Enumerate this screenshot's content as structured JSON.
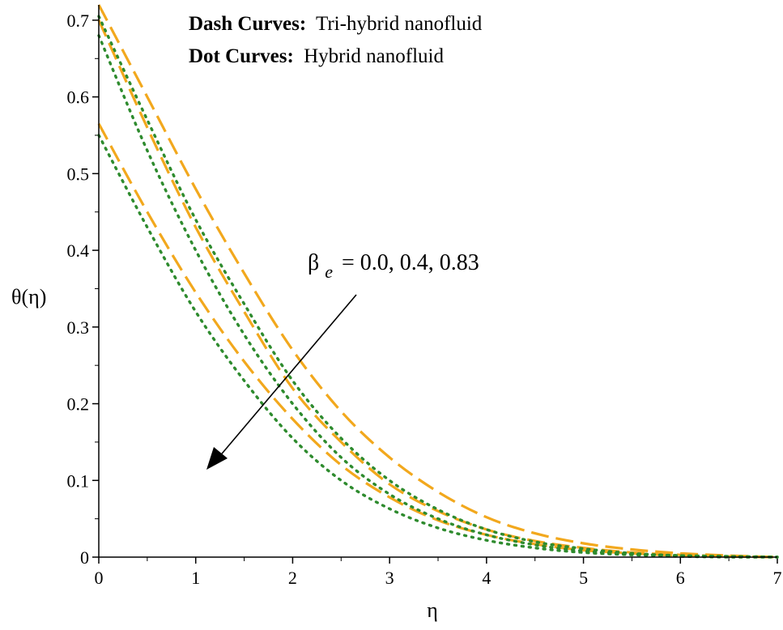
{
  "chart_data": {
    "type": "line",
    "xlabel": "η",
    "ylabel": "θ(η)",
    "xlim": [
      0,
      7
    ],
    "ylim": [
      0,
      0.72
    ],
    "x_ticks": [
      "0",
      "1",
      "2",
      "3",
      "4",
      "5",
      "6",
      "7"
    ],
    "y_ticks": [
      "0",
      "0.1",
      "0.2",
      "0.3",
      "0.4",
      "0.5",
      "0.6",
      "0.7"
    ],
    "legend": [
      {
        "bold": "Dash Curves:",
        "text": "Tri-hybrid nanofluid"
      },
      {
        "bold": "Dot Curves:",
        "text": "Hybrid nanofluid"
      }
    ],
    "annotation": {
      "symbol": "β",
      "subscript": "e",
      "text": "= 0.0, 0.4, 0.83"
    },
    "colors": {
      "dash": "#f2a81d",
      "dot": "#2e8b2e"
    },
    "series": [
      {
        "style": "dash",
        "x": [
          0,
          0.5,
          1,
          1.5,
          2,
          2.5,
          3,
          3.5,
          4,
          4.5,
          5,
          5.5,
          6,
          6.5,
          7
        ],
        "values": [
          0.72,
          0.6,
          0.48,
          0.37,
          0.27,
          0.19,
          0.13,
          0.085,
          0.052,
          0.031,
          0.018,
          0.01,
          0.005,
          0.002,
          0.0
        ]
      },
      {
        "style": "dash",
        "x": [
          0,
          0.5,
          1,
          1.5,
          2,
          2.5,
          3,
          3.5,
          4,
          4.5,
          5,
          5.5,
          6,
          6.5,
          7
        ],
        "values": [
          0.7,
          0.56,
          0.43,
          0.32,
          0.22,
          0.15,
          0.095,
          0.06,
          0.036,
          0.021,
          0.012,
          0.006,
          0.003,
          0.001,
          0.0
        ]
      },
      {
        "style": "dash",
        "x": [
          0,
          0.5,
          1,
          1.5,
          2,
          2.5,
          3,
          3.5,
          4,
          4.5,
          5,
          5.5,
          6,
          6.5,
          7
        ],
        "values": [
          0.565,
          0.45,
          0.345,
          0.255,
          0.18,
          0.12,
          0.078,
          0.048,
          0.029,
          0.017,
          0.009,
          0.005,
          0.002,
          0.001,
          0.0
        ]
      },
      {
        "style": "dot",
        "x": [
          0,
          0.5,
          1,
          1.5,
          2,
          2.5,
          3,
          3.5,
          4,
          4.5,
          5,
          5.5,
          6,
          6.5,
          7
        ],
        "values": [
          0.705,
          0.57,
          0.44,
          0.33,
          0.23,
          0.155,
          0.1,
          0.062,
          0.036,
          0.02,
          0.011,
          0.005,
          0.002,
          0.001,
          0.0
        ]
      },
      {
        "style": "dot",
        "x": [
          0,
          0.5,
          1,
          1.5,
          2,
          2.5,
          3,
          3.5,
          4,
          4.5,
          5,
          5.5,
          6,
          6.5,
          7
        ],
        "values": [
          0.68,
          0.53,
          0.4,
          0.29,
          0.2,
          0.13,
          0.082,
          0.05,
          0.029,
          0.016,
          0.008,
          0.004,
          0.002,
          0.001,
          0.0
        ]
      },
      {
        "style": "dot",
        "x": [
          0,
          0.5,
          1,
          1.5,
          2,
          2.5,
          3,
          3.5,
          4,
          4.5,
          5,
          5.5,
          6,
          6.5,
          7
        ],
        "values": [
          0.55,
          0.43,
          0.32,
          0.23,
          0.155,
          0.1,
          0.063,
          0.038,
          0.022,
          0.012,
          0.006,
          0.003,
          0.001,
          0.0,
          0.0
        ]
      }
    ]
  }
}
